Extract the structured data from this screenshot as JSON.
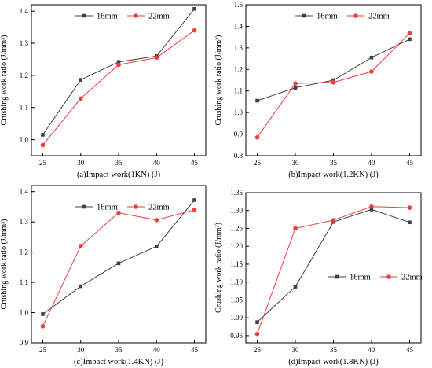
{
  "colors": {
    "s16": "#404040",
    "s22": "#f03c3c",
    "axis": "#000000"
  },
  "chart_data": [
    {
      "type": "line",
      "xlabel": "(a)Impact work(1KN) (J)",
      "ylabel": "Crushing work ratio (J/mm³)",
      "x": [
        25,
        30,
        35,
        40,
        45
      ],
      "xticks": [
        "25",
        "30",
        "35",
        "40",
        "45"
      ],
      "xlim": [
        23.5,
        46.5
      ],
      "ylim": [
        0.95,
        1.42
      ],
      "yticks": [
        "1.0",
        "1.1",
        "1.2",
        "1.3",
        "1.4"
      ],
      "ytick_values": [
        1.0,
        1.1,
        1.2,
        1.3,
        1.4
      ],
      "legend": "top-center-horizontal",
      "grid": false,
      "series": [
        {
          "name": "16mm",
          "values": [
            1.015,
            1.186,
            1.242,
            1.26,
            1.407
          ]
        },
        {
          "name": "22mm",
          "values": [
            0.983,
            1.128,
            1.233,
            1.255,
            1.34
          ]
        }
      ]
    },
    {
      "type": "line",
      "xlabel": "(b)Impact work(1.2KN) (J)",
      "ylabel": "Crushing work ratio (J/mm³)",
      "x": [
        25,
        30,
        35,
        40,
        45
      ],
      "xticks": [
        "25",
        "30",
        "35",
        "40",
        "45"
      ],
      "xlim": [
        23.5,
        46.5
      ],
      "ylim": [
        0.8,
        1.5
      ],
      "yticks": [
        "0.8",
        "0.9",
        "1.0",
        "1.1",
        "1.2",
        "1.3",
        "1.4",
        "1.5"
      ],
      "ytick_values": [
        0.8,
        0.9,
        1.0,
        1.1,
        1.2,
        1.3,
        1.4,
        1.5
      ],
      "legend": "top-center-horizontal",
      "grid": false,
      "series": [
        {
          "name": "16mm",
          "values": [
            1.055,
            1.115,
            1.15,
            1.255,
            1.34
          ]
        },
        {
          "name": "22mm",
          "values": [
            0.885,
            1.135,
            1.14,
            1.19,
            1.368
          ]
        }
      ]
    },
    {
      "type": "line",
      "xlabel": "(c)Impact work(1.4KN) (J)",
      "ylabel": "Crushing work ratio (J/mm³)",
      "x": [
        25,
        30,
        35,
        40,
        45
      ],
      "xticks": [
        "25",
        "30",
        "35",
        "40",
        "45"
      ],
      "xlim": [
        23.5,
        46.5
      ],
      "ylim": [
        0.9,
        1.42
      ],
      "yticks": [
        "0.9",
        "1.0",
        "1.1",
        "1.2",
        "1.3",
        "1.4"
      ],
      "ytick_values": [
        0.9,
        1.0,
        1.1,
        1.2,
        1.3,
        1.4
      ],
      "legend": "top-center-horizontal",
      "grid": false,
      "series": [
        {
          "name": "16mm",
          "values": [
            0.995,
            1.087,
            1.163,
            1.219,
            1.372
          ]
        },
        {
          "name": "22mm",
          "values": [
            0.955,
            1.22,
            1.33,
            1.306,
            1.34
          ]
        }
      ]
    },
    {
      "type": "line",
      "xlabel": "(d)Impact work(1.8KN) (J)",
      "ylabel": "Crushing work ratio (J/mm³)",
      "x": [
        25,
        30,
        35,
        40,
        45
      ],
      "xticks": [
        "25",
        "30",
        "35",
        "40",
        "45"
      ],
      "xlim": [
        23.5,
        46.5
      ],
      "ylim": [
        0.93,
        1.35
      ],
      "yticks": [
        "0.95",
        "1.00",
        "1.05",
        "1.10",
        "1.15",
        "1.20",
        "1.25",
        "1.30",
        "1.35"
      ],
      "ytick_values": [
        0.95,
        1.0,
        1.05,
        1.1,
        1.15,
        1.2,
        1.25,
        1.3,
        1.35
      ],
      "legend": "center-right-horizontal",
      "grid": false,
      "series": [
        {
          "name": "16mm",
          "values": [
            0.988,
            1.087,
            1.268,
            1.303,
            1.267
          ]
        },
        {
          "name": "22mm",
          "values": [
            0.955,
            1.25,
            1.273,
            1.311,
            1.308
          ]
        }
      ]
    }
  ]
}
